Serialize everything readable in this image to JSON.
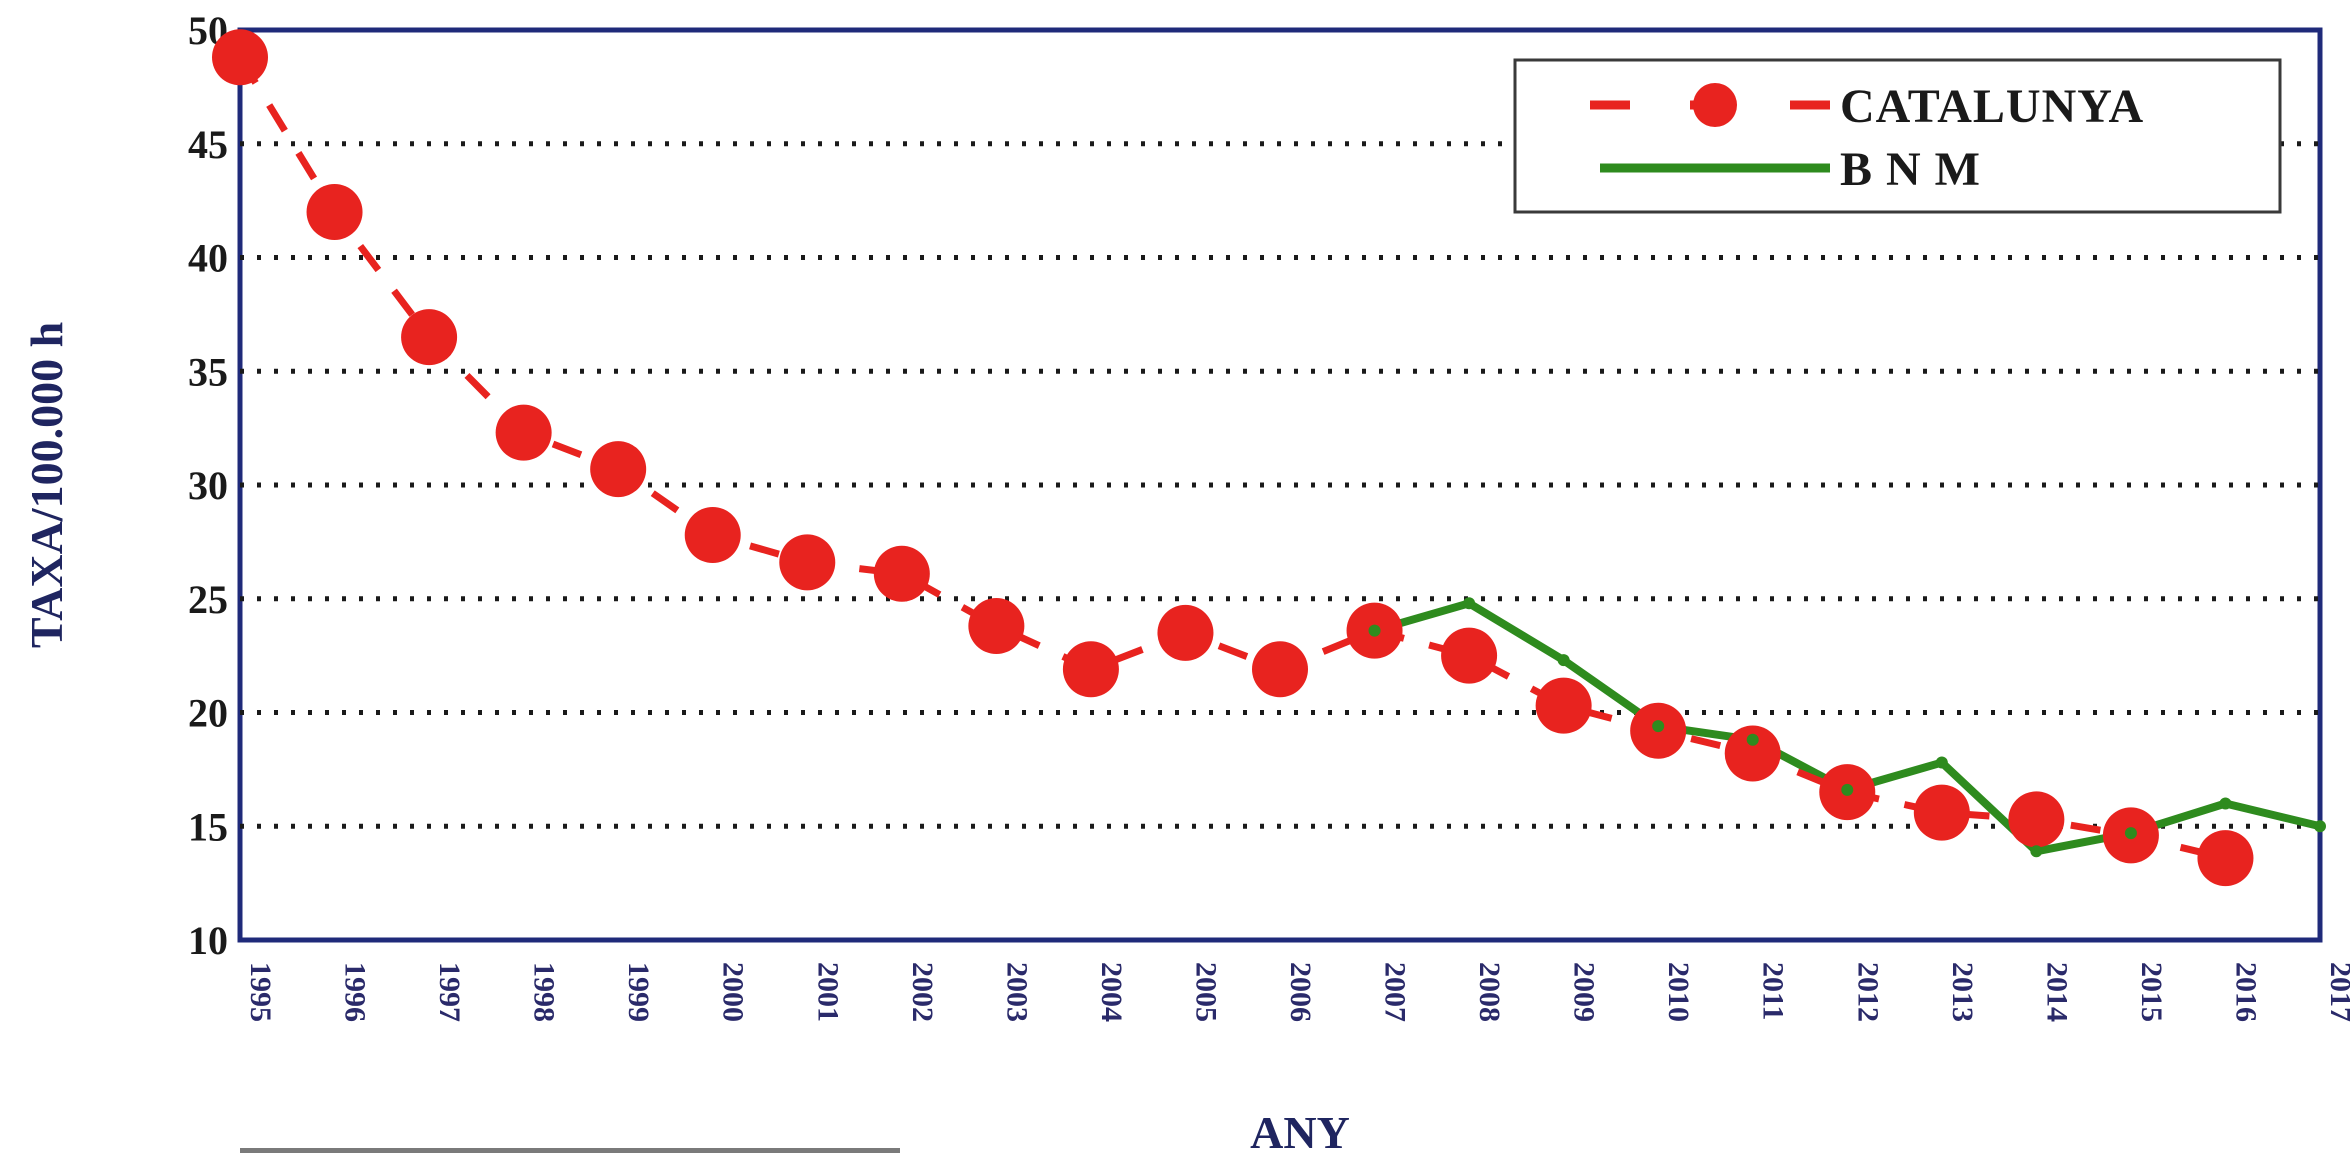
{
  "chart_data": {
    "type": "line",
    "title": "",
    "xlabel": "ANY",
    "ylabel": "TAXA/100.000 h",
    "ylim": [
      10,
      50
    ],
    "yticks": [
      "10",
      "15",
      "20",
      "25",
      "30",
      "35",
      "40",
      "45",
      "50"
    ],
    "categories": [
      "1995",
      "1996",
      "1997",
      "1998",
      "1999",
      "2000",
      "2001",
      "2002",
      "2003",
      "2004",
      "2005",
      "2006",
      "2007",
      "2008",
      "2009",
      "2010",
      "2011",
      "2012",
      "2013",
      "2014",
      "2015",
      "2016",
      "2017"
    ],
    "grid": "horizontal dotted",
    "legend_position": "top-right",
    "series": [
      {
        "name": "CATALUNYA",
        "style": "dashed-with-circles",
        "color": "#e8231f",
        "values": [
          48.8,
          42.0,
          36.5,
          32.3,
          30.7,
          27.8,
          26.6,
          26.1,
          23.8,
          21.9,
          23.5,
          21.9,
          23.6,
          22.5,
          20.3,
          19.2,
          18.2,
          16.5,
          15.6,
          15.3,
          14.6,
          13.6,
          null
        ]
      },
      {
        "name": "B N M",
        "style": "solid",
        "color": "#2e8b1e",
        "values": [
          null,
          null,
          null,
          null,
          null,
          null,
          null,
          null,
          null,
          null,
          null,
          null,
          23.6,
          24.8,
          22.3,
          19.4,
          18.8,
          16.6,
          17.8,
          13.9,
          14.7,
          16.0,
          15.0
        ]
      }
    ]
  }
}
